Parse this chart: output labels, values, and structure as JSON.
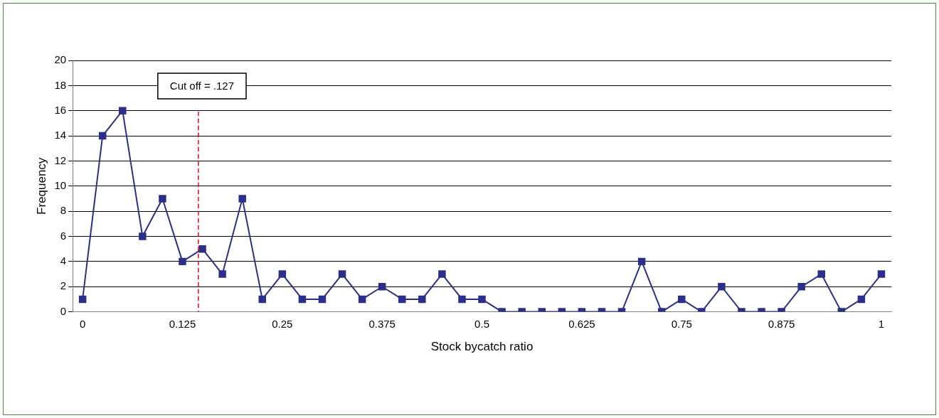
{
  "chart_data": {
    "type": "line",
    "xlabel": "Stock bycatch ratio",
    "ylabel": "Frequency",
    "x": [
      0,
      0.025,
      0.05,
      0.075,
      0.1,
      0.125,
      0.15,
      0.175,
      0.2,
      0.225,
      0.25,
      0.275,
      0.3,
      0.325,
      0.35,
      0.375,
      0.4,
      0.425,
      0.45,
      0.475,
      0.5,
      0.525,
      0.55,
      0.575,
      0.6,
      0.625,
      0.65,
      0.675,
      0.7,
      0.725,
      0.75,
      0.775,
      0.8,
      0.825,
      0.85,
      0.875,
      0.9,
      0.925,
      0.95,
      0.975,
      1
    ],
    "series": [
      {
        "color": "#2b2f8c",
        "values": [
          1,
          14,
          16,
          6,
          9,
          4,
          5,
          3,
          9,
          1,
          3,
          1,
          1,
          3,
          1,
          2,
          1,
          1,
          3,
          1,
          1,
          0,
          0,
          0,
          0,
          0,
          0,
          0,
          4,
          0,
          1,
          0,
          2,
          0,
          0,
          0,
          2,
          3,
          0,
          1,
          3
        ]
      }
    ],
    "xlim": [
      -0.0125,
      1.0125
    ],
    "xticks": [
      0,
      0.125,
      0.25,
      0.375,
      0.5,
      0.625,
      0.75,
      0.875,
      1
    ],
    "ylim": [
      0,
      20
    ],
    "yticks": [
      0,
      2,
      4,
      6,
      8,
      10,
      12,
      14,
      16,
      18,
      20
    ],
    "ref_lines": [
      {
        "axis": "x",
        "value": 0.145,
        "label": "Cut off = .127",
        "color": "#ff0000",
        "line_style": "dashed"
      }
    ],
    "grid": "y",
    "legend": false,
    "marker": "square",
    "line_style": "solid"
  }
}
